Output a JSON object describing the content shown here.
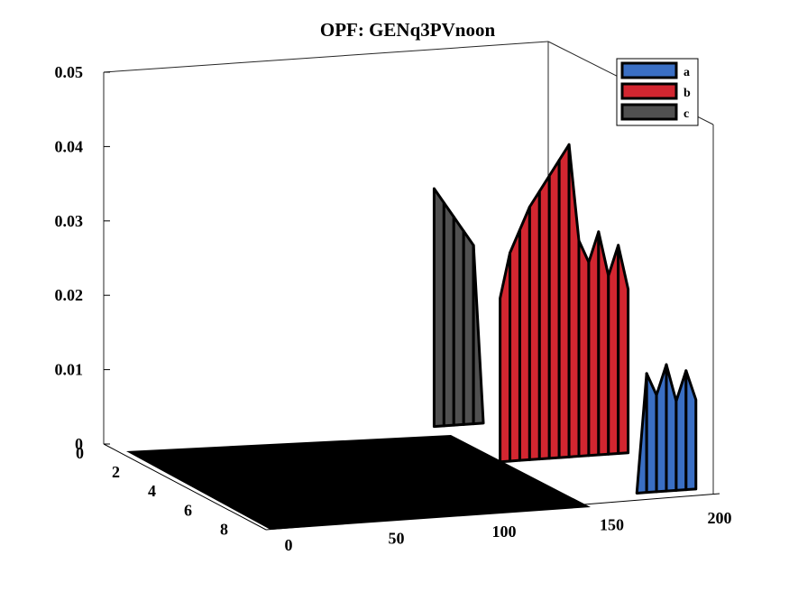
{
  "chart_data": {
    "type": "surface3d",
    "title": "OPF: GENq3PVnoon",
    "xlabel": "",
    "ylabel": "",
    "zlabel": "",
    "xlim": [
      0,
      200
    ],
    "ylim": [
      0,
      9
    ],
    "zlim": [
      0,
      0.05
    ],
    "x_ticks": [
      "0",
      "50",
      "100",
      "150",
      "200"
    ],
    "y_ticks": [
      "0",
      "2",
      "4",
      "6",
      "8"
    ],
    "z_ticks": [
      "0",
      "0.01",
      "0.02",
      "0.03",
      "0.04",
      "0.05"
    ],
    "legend_position": "top-right",
    "grid": false,
    "colors": {
      "a": "#3a6fc4",
      "b": "#d22630",
      "c": "#505050",
      "floor": "#000000"
    },
    "series": [
      {
        "name": "a",
        "x": [
          128,
          132,
          136,
          140,
          144,
          148,
          152,
          156,
          160,
          164,
          168,
          172,
          176,
          180
        ],
        "values": [
          0.0,
          0.0,
          0.0,
          0.0,
          0.0,
          0.0,
          0.0,
          0.0,
          0.016,
          0.013,
          0.017,
          0.012,
          0.016,
          0.012
        ]
      },
      {
        "name": "b",
        "x": [
          128,
          132,
          136,
          140,
          144,
          148,
          152,
          156,
          160,
          164,
          168,
          172,
          176,
          180
        ],
        "values": [
          0.022,
          0.028,
          0.031,
          0.034,
          0.036,
          0.038,
          0.04,
          0.042,
          0.029,
          0.026,
          0.03,
          0.024,
          0.028,
          0.022
        ]
      },
      {
        "name": "c",
        "x": [
          128,
          132,
          136,
          140,
          144,
          148,
          152,
          156,
          160,
          164,
          168,
          172,
          176,
          180
        ],
        "values": [
          0.032,
          0.03,
          0.028,
          0.026,
          0.024,
          0.0,
          0.0,
          0.0,
          0.006,
          0.004,
          0.007,
          0.003,
          0.005,
          0.002
        ]
      }
    ]
  }
}
